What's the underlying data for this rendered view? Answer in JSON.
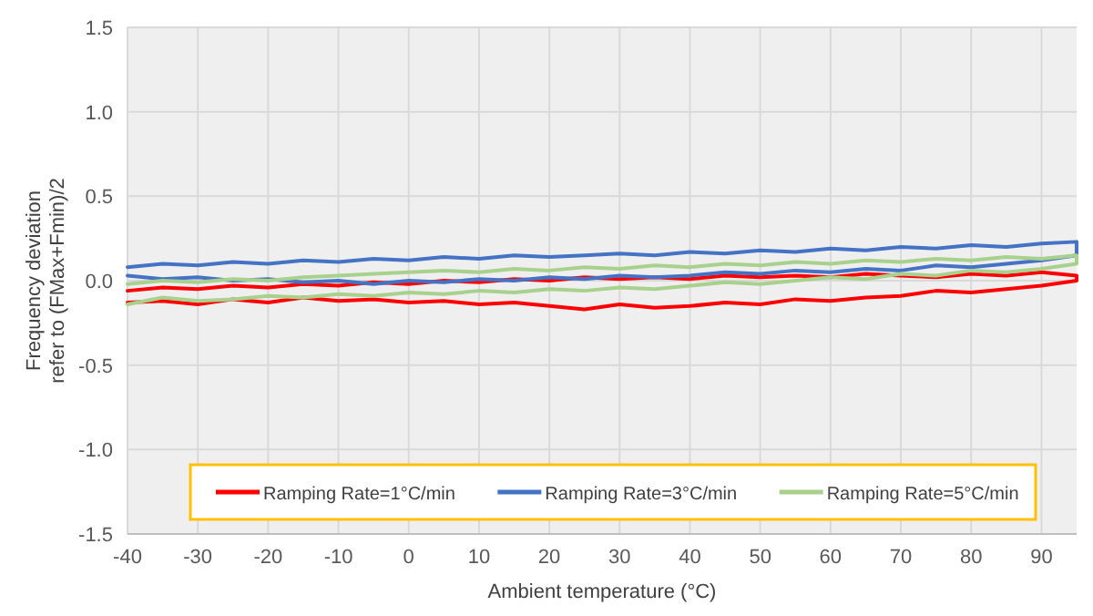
{
  "chart_data": {
    "type": "line",
    "xlabel": "Ambient temperature (°C)",
    "ylabel": "Frequency deviation\nrefer to (FMax+Fmin)/2",
    "xlim": [
      -40,
      95
    ],
    "ylim": [
      -1.5,
      1.5
    ],
    "xticks": [
      -40,
      -30,
      -20,
      -10,
      0,
      10,
      20,
      30,
      40,
      50,
      60,
      70,
      80,
      90
    ],
    "yticks": [
      {
        "value": -1.5,
        "label": "-1.5"
      },
      {
        "value": -1,
        "label": "-1.0"
      },
      {
        "value": -0.5,
        "label": "-0.5"
      },
      {
        "value": 0,
        "label": "0.0"
      },
      {
        "value": 0.5,
        "label": "0.5"
      },
      {
        "value": 1,
        "label": "1.0"
      },
      {
        "value": 1.5,
        "label": "1.5"
      }
    ],
    "grid": true,
    "legend": "bottom",
    "marker": "none",
    "line_style": "solid",
    "series": [
      {
        "name": "Ramping Rate=1°C/min",
        "color": "#ff0000",
        "x": [
          -40,
          -35,
          -30,
          -25,
          -20,
          -15,
          -10,
          -5,
          0,
          5,
          10,
          15,
          20,
          25,
          30,
          35,
          40,
          45,
          50,
          55,
          60,
          65,
          70,
          75,
          80,
          85,
          90,
          95,
          95,
          90,
          85,
          80,
          75,
          70,
          65,
          60,
          55,
          50,
          45,
          40,
          35,
          30,
          25,
          20,
          15,
          10,
          5,
          0,
          -5,
          -10,
          -15,
          -20,
          -25,
          -30,
          -35,
          -40
        ],
        "values": [
          -0.06,
          -0.04,
          -0.05,
          -0.03,
          -0.04,
          -0.02,
          -0.03,
          -0.01,
          -0.02,
          0.0,
          -0.01,
          0.01,
          0.0,
          0.02,
          0.01,
          0.02,
          0.01,
          0.03,
          0.02,
          0.03,
          0.02,
          0.04,
          0.03,
          0.02,
          0.04,
          0.03,
          0.05,
          0.03,
          0.0,
          -0.03,
          -0.05,
          -0.07,
          -0.06,
          -0.09,
          -0.1,
          -0.12,
          -0.11,
          -0.14,
          -0.13,
          -0.15,
          -0.16,
          -0.14,
          -0.17,
          -0.15,
          -0.13,
          -0.14,
          -0.12,
          -0.13,
          -0.11,
          -0.12,
          -0.1,
          -0.13,
          -0.11,
          -0.14,
          -0.12,
          -0.13
        ]
      },
      {
        "name": "Ramping Rate=3°C/min",
        "color": "#4472c4",
        "x": [
          -40,
          -35,
          -30,
          -25,
          -20,
          -15,
          -10,
          -5,
          0,
          5,
          10,
          15,
          20,
          25,
          30,
          35,
          40,
          45,
          50,
          55,
          60,
          65,
          70,
          75,
          80,
          85,
          90,
          95,
          95,
          90,
          85,
          80,
          75,
          70,
          65,
          60,
          55,
          50,
          45,
          40,
          35,
          30,
          25,
          20,
          15,
          10,
          5,
          0,
          -5,
          -10,
          -15,
          -20,
          -25,
          -30,
          -35,
          -40
        ],
        "values": [
          0.08,
          0.1,
          0.09,
          0.11,
          0.1,
          0.12,
          0.11,
          0.13,
          0.12,
          0.14,
          0.13,
          0.15,
          0.14,
          0.15,
          0.16,
          0.15,
          0.17,
          0.16,
          0.18,
          0.17,
          0.19,
          0.18,
          0.2,
          0.19,
          0.21,
          0.2,
          0.22,
          0.23,
          0.15,
          0.12,
          0.1,
          0.08,
          0.09,
          0.06,
          0.07,
          0.05,
          0.06,
          0.04,
          0.05,
          0.03,
          0.02,
          0.03,
          0.01,
          0.02,
          0.0,
          0.01,
          -0.01,
          0.0,
          -0.02,
          0.0,
          -0.01,
          0.01,
          0.0,
          0.02,
          0.01,
          0.03
        ]
      },
      {
        "name": "Ramping Rate=5°C/min",
        "color": "#a9d18e",
        "x": [
          -40,
          -35,
          -30,
          -25,
          -20,
          -15,
          -10,
          -5,
          0,
          5,
          10,
          15,
          20,
          25,
          30,
          35,
          40,
          45,
          50,
          55,
          60,
          65,
          70,
          75,
          80,
          85,
          90,
          95,
          95,
          90,
          85,
          80,
          75,
          70,
          65,
          60,
          55,
          50,
          45,
          40,
          35,
          30,
          25,
          20,
          15,
          10,
          5,
          0,
          -5,
          -10,
          -15,
          -20,
          -25,
          -30,
          -35,
          -40
        ],
        "values": [
          -0.02,
          0.0,
          -0.01,
          0.01,
          0.0,
          0.02,
          0.03,
          0.04,
          0.05,
          0.06,
          0.05,
          0.07,
          0.06,
          0.08,
          0.07,
          0.09,
          0.08,
          0.1,
          0.09,
          0.11,
          0.1,
          0.12,
          0.11,
          0.13,
          0.12,
          0.14,
          0.13,
          0.15,
          0.1,
          0.07,
          0.05,
          0.06,
          0.03,
          0.04,
          0.01,
          0.02,
          0.0,
          -0.02,
          -0.01,
          -0.03,
          -0.05,
          -0.04,
          -0.06,
          -0.05,
          -0.07,
          -0.06,
          -0.08,
          -0.07,
          -0.09,
          -0.08,
          -0.1,
          -0.09,
          -0.11,
          -0.12,
          -0.1,
          -0.14
        ]
      }
    ]
  }
}
